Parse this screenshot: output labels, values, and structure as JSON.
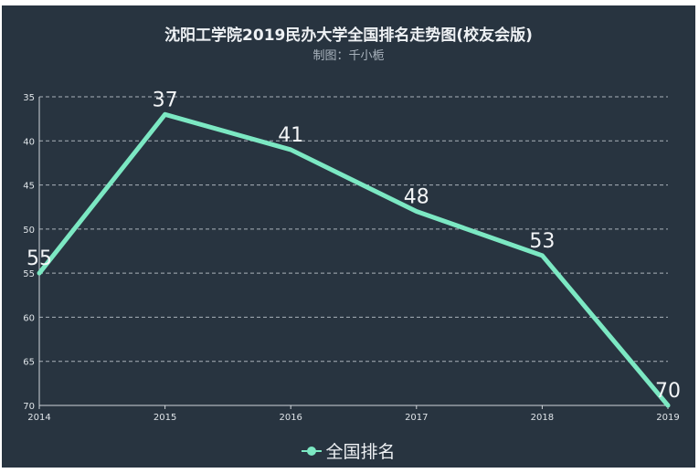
{
  "chart_data": {
    "type": "line",
    "title": "沈阳工学院2019民办大学全国排名走势图(校友会版)",
    "subtitle": "制图：千小栀",
    "x": [
      "2014",
      "2015",
      "2016",
      "2017",
      "2018",
      "2019"
    ],
    "series": [
      {
        "name": "全国排名",
        "values": [
          55,
          37,
          41,
          48,
          53,
          70
        ],
        "color": "#7ce8c3"
      }
    ],
    "y_ticks": [
      "35",
      "40",
      "45",
      "50",
      "55",
      "60",
      "65",
      "70"
    ],
    "ylim": [
      35,
      70
    ],
    "y_inverted": true,
    "grid": true,
    "legend_position": "bottom",
    "background": "#283440"
  }
}
